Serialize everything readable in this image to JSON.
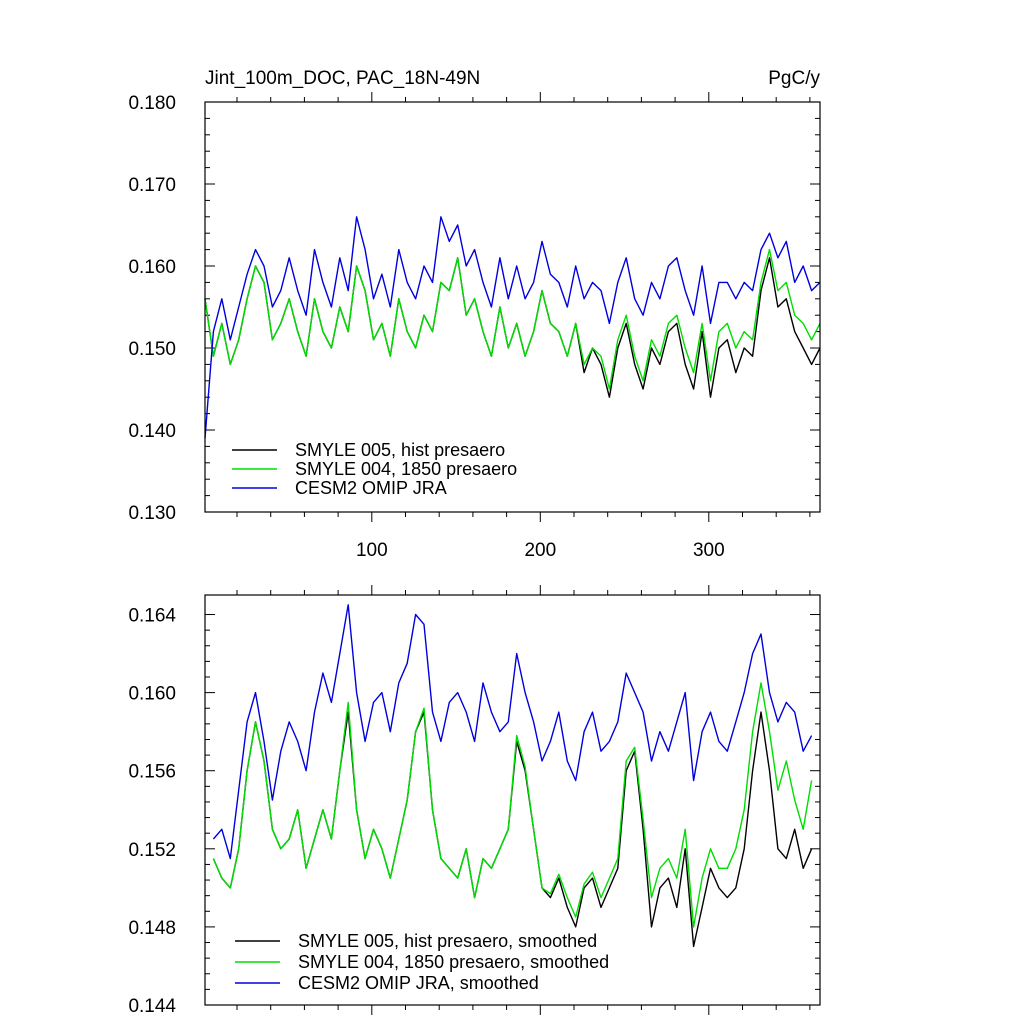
{
  "chart_data": [
    {
      "type": "line",
      "title_left": "Jint_100m_DOC, PAC_18N-49N",
      "title_right": "PgC/y",
      "xlim": [
        1,
        366
      ],
      "ylim": [
        0.13,
        0.18
      ],
      "x_ticks": [
        100,
        200,
        300
      ],
      "x_tick_labels": [
        "100",
        "200",
        "300"
      ],
      "y_ticks": [
        0.13,
        0.14,
        0.15,
        0.16,
        0.17,
        0.18
      ],
      "y_tick_labels": [
        "0.130",
        "0.140",
        "0.150",
        "0.160",
        "0.170",
        "0.180"
      ],
      "grid": false,
      "legend_position": "bottom-left",
      "series": [
        {
          "name": "SMYLE 005, hist presaero",
          "color": "#000000",
          "x": [
            1,
            6,
            11,
            16,
            21,
            26,
            31,
            36,
            41,
            46,
            51,
            56,
            61,
            66,
            71,
            76,
            81,
            86,
            91,
            96,
            101,
            106,
            111,
            116,
            121,
            126,
            131,
            136,
            141,
            146,
            151,
            156,
            161,
            166,
            171,
            176,
            181,
            186,
            191,
            196,
            201,
            206,
            211,
            216,
            221,
            226,
            231,
            236,
            241,
            246,
            251,
            256,
            261,
            266,
            271,
            276,
            281,
            286,
            291,
            296,
            301,
            306,
            311,
            316,
            321,
            326,
            331,
            336,
            341,
            346,
            351,
            356,
            361,
            366
          ],
          "values": [
            0.156,
            0.149,
            0.153,
            0.148,
            0.151,
            0.156,
            0.16,
            0.158,
            0.151,
            0.153,
            0.156,
            0.152,
            0.149,
            0.156,
            0.152,
            0.15,
            0.155,
            0.152,
            0.16,
            0.157,
            0.151,
            0.153,
            0.149,
            0.156,
            0.152,
            0.15,
            0.154,
            0.152,
            0.158,
            0.157,
            0.161,
            0.154,
            0.156,
            0.152,
            0.149,
            0.155,
            0.15,
            0.153,
            0.149,
            0.152,
            0.157,
            0.153,
            0.152,
            0.149,
            0.153,
            0.147,
            0.15,
            0.148,
            0.144,
            0.15,
            0.153,
            0.148,
            0.145,
            0.15,
            0.148,
            0.152,
            0.153,
            0.148,
            0.145,
            0.152,
            0.144,
            0.15,
            0.151,
            0.147,
            0.15,
            0.149,
            0.157,
            0.161,
            0.155,
            0.156,
            0.152,
            0.15,
            0.148,
            0.15
          ]
        },
        {
          "name": "SMYLE 004, 1850 presaero",
          "color": "#00dd00",
          "x": [
            1,
            6,
            11,
            16,
            21,
            26,
            31,
            36,
            41,
            46,
            51,
            56,
            61,
            66,
            71,
            76,
            81,
            86,
            91,
            96,
            101,
            106,
            111,
            116,
            121,
            126,
            131,
            136,
            141,
            146,
            151,
            156,
            161,
            166,
            171,
            176,
            181,
            186,
            191,
            196,
            201,
            206,
            211,
            216,
            221,
            226,
            231,
            236,
            241,
            246,
            251,
            256,
            261,
            266,
            271,
            276,
            281,
            286,
            291,
            296,
            301,
            306,
            311,
            316,
            321,
            326,
            331,
            336,
            341,
            346,
            351,
            356,
            361,
            366
          ],
          "values": [
            0.156,
            0.149,
            0.153,
            0.148,
            0.151,
            0.156,
            0.16,
            0.158,
            0.151,
            0.153,
            0.156,
            0.152,
            0.149,
            0.156,
            0.152,
            0.15,
            0.155,
            0.152,
            0.16,
            0.157,
            0.151,
            0.153,
            0.149,
            0.156,
            0.152,
            0.15,
            0.154,
            0.152,
            0.158,
            0.157,
            0.161,
            0.154,
            0.156,
            0.152,
            0.149,
            0.155,
            0.15,
            0.153,
            0.149,
            0.152,
            0.157,
            0.153,
            0.152,
            0.149,
            0.153,
            0.148,
            0.15,
            0.149,
            0.145,
            0.151,
            0.154,
            0.149,
            0.146,
            0.151,
            0.149,
            0.153,
            0.154,
            0.15,
            0.147,
            0.153,
            0.146,
            0.152,
            0.153,
            0.15,
            0.152,
            0.151,
            0.158,
            0.162,
            0.157,
            0.158,
            0.154,
            0.153,
            0.151,
            0.153
          ]
        },
        {
          "name": "CESM2 OMIP JRA",
          "color": "#0000dd",
          "x": [
            1,
            6,
            11,
            16,
            21,
            26,
            31,
            36,
            41,
            46,
            51,
            56,
            61,
            66,
            71,
            76,
            81,
            86,
            91,
            96,
            101,
            106,
            111,
            116,
            121,
            126,
            131,
            136,
            141,
            146,
            151,
            156,
            161,
            166,
            171,
            176,
            181,
            186,
            191,
            196,
            201,
            206,
            211,
            216,
            221,
            226,
            231,
            236,
            241,
            246,
            251,
            256,
            261,
            266,
            271,
            276,
            281,
            286,
            291,
            296,
            301,
            306,
            311,
            316,
            321,
            326,
            331,
            336,
            341,
            346,
            351,
            356,
            361,
            366
          ],
          "values": [
            0.139,
            0.152,
            0.156,
            0.151,
            0.155,
            0.159,
            0.162,
            0.16,
            0.155,
            0.157,
            0.161,
            0.157,
            0.154,
            0.162,
            0.158,
            0.155,
            0.161,
            0.157,
            0.166,
            0.162,
            0.156,
            0.159,
            0.155,
            0.162,
            0.158,
            0.156,
            0.16,
            0.158,
            0.166,
            0.163,
            0.165,
            0.16,
            0.162,
            0.158,
            0.155,
            0.161,
            0.156,
            0.16,
            0.156,
            0.158,
            0.163,
            0.159,
            0.158,
            0.155,
            0.16,
            0.156,
            0.158,
            0.157,
            0.153,
            0.158,
            0.161,
            0.156,
            0.154,
            0.158,
            0.156,
            0.16,
            0.161,
            0.157,
            0.154,
            0.16,
            0.153,
            0.158,
            0.158,
            0.156,
            0.158,
            0.157,
            0.162,
            0.164,
            0.161,
            0.163,
            0.158,
            0.16,
            0.157,
            0.158
          ]
        }
      ]
    },
    {
      "type": "line",
      "title_left": "",
      "title_right": "",
      "xlim": [
        1,
        366
      ],
      "ylim": [
        0.144,
        0.165
      ],
      "x_ticks": [
        100,
        200,
        300
      ],
      "x_tick_labels": [
        "",
        "",
        ""
      ],
      "y_ticks": [
        0.144,
        0.148,
        0.152,
        0.156,
        0.16,
        0.164
      ],
      "y_tick_labels": [
        "0.144",
        "0.148",
        "0.152",
        "0.156",
        "0.160",
        "0.164"
      ],
      "grid": false,
      "legend_position": "bottom-left",
      "series": [
        {
          "name": "SMYLE 005, hist presaero, smoothed",
          "color": "#000000",
          "x": [
            6,
            11,
            16,
            21,
            26,
            31,
            36,
            41,
            46,
            51,
            56,
            61,
            66,
            71,
            76,
            81,
            86,
            91,
            96,
            101,
            106,
            111,
            116,
            121,
            126,
            131,
            136,
            141,
            146,
            151,
            156,
            161,
            166,
            171,
            176,
            181,
            186,
            191,
            196,
            201,
            206,
            211,
            216,
            221,
            226,
            231,
            236,
            241,
            246,
            251,
            256,
            261,
            266,
            271,
            276,
            281,
            286,
            291,
            296,
            301,
            306,
            311,
            316,
            321,
            326,
            331,
            336,
            341,
            346,
            351,
            356,
            361
          ],
          "values": [
            0.1515,
            0.1505,
            0.15,
            0.152,
            0.156,
            0.1585,
            0.1565,
            0.153,
            0.152,
            0.1525,
            0.154,
            0.151,
            0.1525,
            0.154,
            0.1525,
            0.156,
            0.159,
            0.154,
            0.1515,
            0.153,
            0.152,
            0.1505,
            0.1525,
            0.1545,
            0.158,
            0.159,
            0.154,
            0.1515,
            0.151,
            0.1505,
            0.152,
            0.1495,
            0.1515,
            0.151,
            0.152,
            0.153,
            0.1575,
            0.156,
            0.153,
            0.15,
            0.1495,
            0.1505,
            0.149,
            0.148,
            0.15,
            0.1505,
            0.149,
            0.15,
            0.151,
            0.156,
            0.157,
            0.153,
            0.148,
            0.15,
            0.1505,
            0.149,
            0.152,
            0.147,
            0.149,
            0.151,
            0.15,
            0.1495,
            0.15,
            0.152,
            0.156,
            0.159,
            0.156,
            0.152,
            0.1515,
            0.153,
            0.151,
            0.152
          ]
        },
        {
          "name": "SMYLE 004, 1850 presaero, smoothed",
          "color": "#00dd00",
          "x": [
            6,
            11,
            16,
            21,
            26,
            31,
            36,
            41,
            46,
            51,
            56,
            61,
            66,
            71,
            76,
            81,
            86,
            91,
            96,
            101,
            106,
            111,
            116,
            121,
            126,
            131,
            136,
            141,
            146,
            151,
            156,
            161,
            166,
            171,
            176,
            181,
            186,
            191,
            196,
            201,
            206,
            211,
            216,
            221,
            226,
            231,
            236,
            241,
            246,
            251,
            256,
            261,
            266,
            271,
            276,
            281,
            286,
            291,
            296,
            301,
            306,
            311,
            316,
            321,
            326,
            331,
            336,
            341,
            346,
            351,
            356,
            361
          ],
          "values": [
            0.1515,
            0.1505,
            0.15,
            0.152,
            0.156,
            0.1585,
            0.1565,
            0.153,
            0.152,
            0.1525,
            0.154,
            0.151,
            0.1525,
            0.154,
            0.1525,
            0.156,
            0.1595,
            0.154,
            0.1515,
            0.153,
            0.152,
            0.1505,
            0.1525,
            0.1545,
            0.158,
            0.1592,
            0.154,
            0.1515,
            0.151,
            0.1505,
            0.152,
            0.1495,
            0.1515,
            0.151,
            0.152,
            0.153,
            0.1578,
            0.1562,
            0.153,
            0.15,
            0.1497,
            0.1507,
            0.1495,
            0.1485,
            0.1502,
            0.1508,
            0.1495,
            0.1505,
            0.1515,
            0.1565,
            0.1572,
            0.1535,
            0.1495,
            0.151,
            0.1515,
            0.1505,
            0.153,
            0.148,
            0.1505,
            0.152,
            0.151,
            0.151,
            0.152,
            0.154,
            0.158,
            0.1605,
            0.158,
            0.155,
            0.1565,
            0.1545,
            0.153,
            0.1555
          ]
        },
        {
          "name": "CESM2 OMIP JRA, smoothed",
          "color": "#0000dd",
          "x": [
            6,
            11,
            16,
            21,
            26,
            31,
            36,
            41,
            46,
            51,
            56,
            61,
            66,
            71,
            76,
            81,
            86,
            91,
            96,
            101,
            106,
            111,
            116,
            121,
            126,
            131,
            136,
            141,
            146,
            151,
            156,
            161,
            166,
            171,
            176,
            181,
            186,
            191,
            196,
            201,
            206,
            211,
            216,
            221,
            226,
            231,
            236,
            241,
            246,
            251,
            256,
            261,
            266,
            271,
            276,
            281,
            286,
            291,
            296,
            301,
            306,
            311,
            316,
            321,
            326,
            331,
            336,
            341,
            346,
            351,
            356,
            361
          ],
          "values": [
            0.1525,
            0.153,
            0.1515,
            0.155,
            0.1585,
            0.16,
            0.1575,
            0.1545,
            0.157,
            0.1585,
            0.1575,
            0.156,
            0.159,
            0.161,
            0.1595,
            0.162,
            0.1645,
            0.16,
            0.1575,
            0.1595,
            0.16,
            0.158,
            0.1605,
            0.1615,
            0.164,
            0.1635,
            0.159,
            0.1575,
            0.1595,
            0.16,
            0.159,
            0.1575,
            0.1605,
            0.159,
            0.158,
            0.1585,
            0.162,
            0.16,
            0.1585,
            0.1565,
            0.1575,
            0.159,
            0.1565,
            0.1555,
            0.158,
            0.159,
            0.157,
            0.1575,
            0.1585,
            0.161,
            0.16,
            0.159,
            0.1565,
            0.158,
            0.157,
            0.1585,
            0.16,
            0.1555,
            0.158,
            0.159,
            0.1575,
            0.157,
            0.1585,
            0.16,
            0.162,
            0.163,
            0.16,
            0.1585,
            0.1595,
            0.159,
            0.157,
            0.1578
          ]
        }
      ]
    }
  ]
}
